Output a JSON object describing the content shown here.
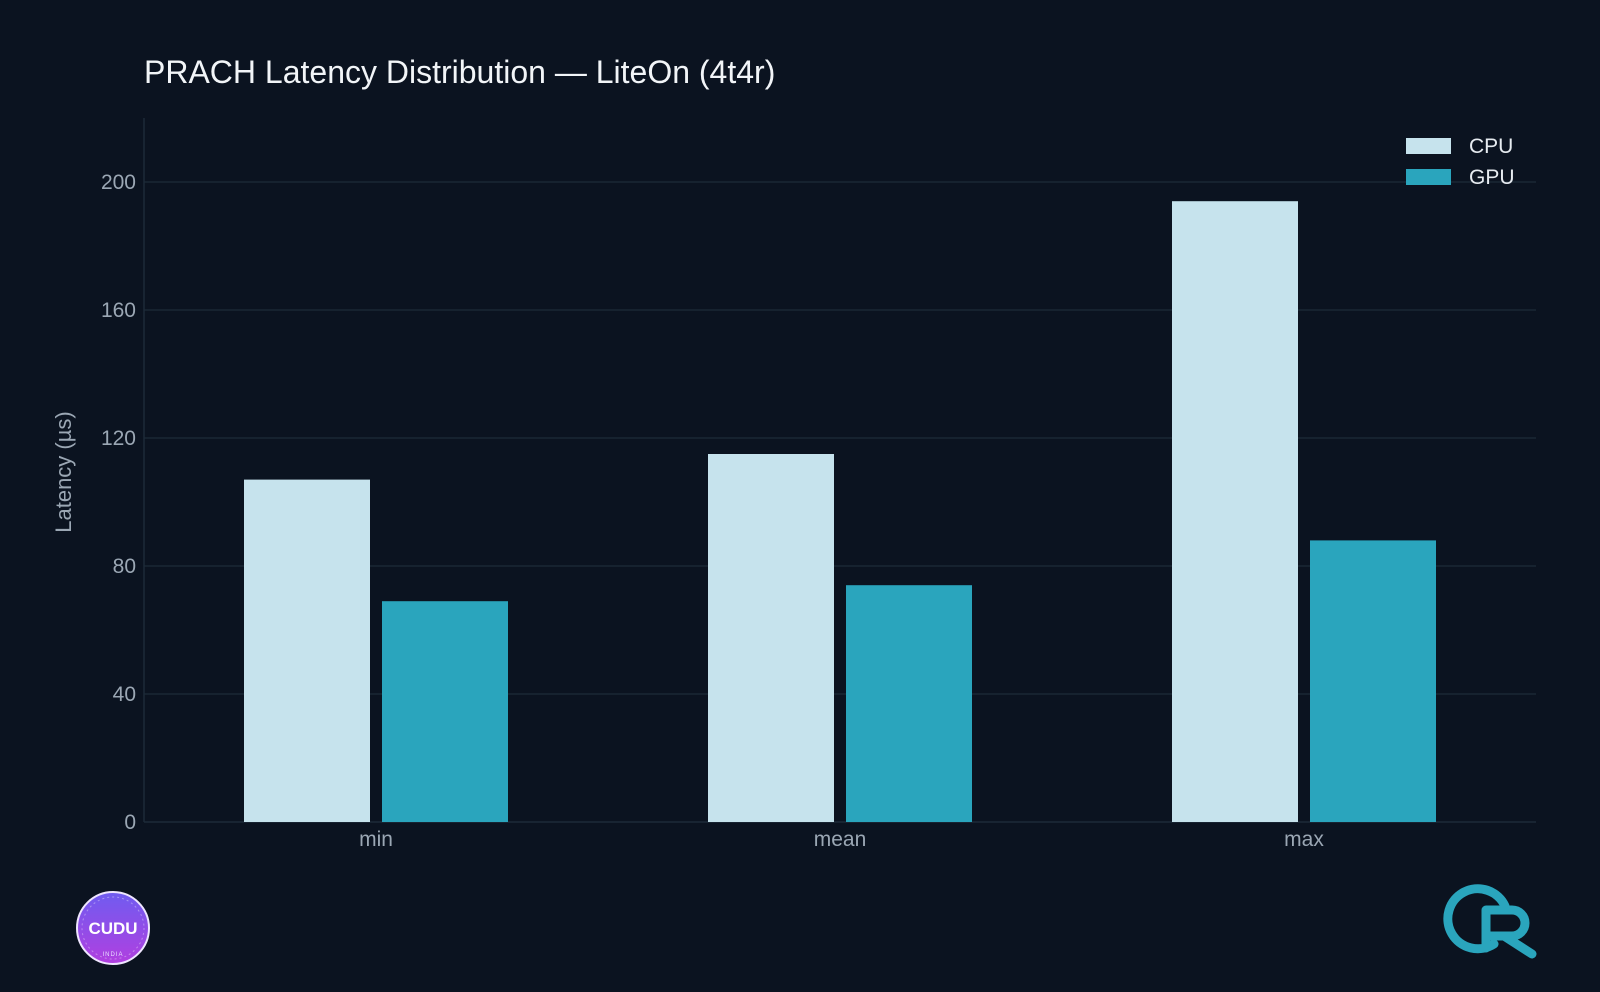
{
  "chart_data": {
    "type": "bar",
    "title": "PRACH Latency Distribution — LiteOn (4t4r)",
    "xlabel": "",
    "ylabel": "Latency (µs)",
    "categories": [
      "min",
      "mean",
      "max"
    ],
    "series": [
      {
        "name": "CPU",
        "color": "#c6e3ed",
        "values": [
          107,
          115,
          194
        ]
      },
      {
        "name": "GPU",
        "color": "#2aa5bd",
        "values": [
          69,
          74,
          88
        ]
      }
    ],
    "ylim": [
      0,
      220
    ],
    "yticks": [
      0,
      40,
      80,
      120,
      160,
      200
    ],
    "grid": true,
    "legend": "top-right"
  },
  "logos": {
    "left": {
      "text": "CUDU",
      "subtext": "INDIA",
      "icon": "cudu-india-badge-icon"
    },
    "right": {
      "icon": "cr-brand-logo-icon",
      "color": "#2aa5bd"
    }
  },
  "colors": {
    "background": "#0b1320",
    "grid": "#1d2b38"
  }
}
